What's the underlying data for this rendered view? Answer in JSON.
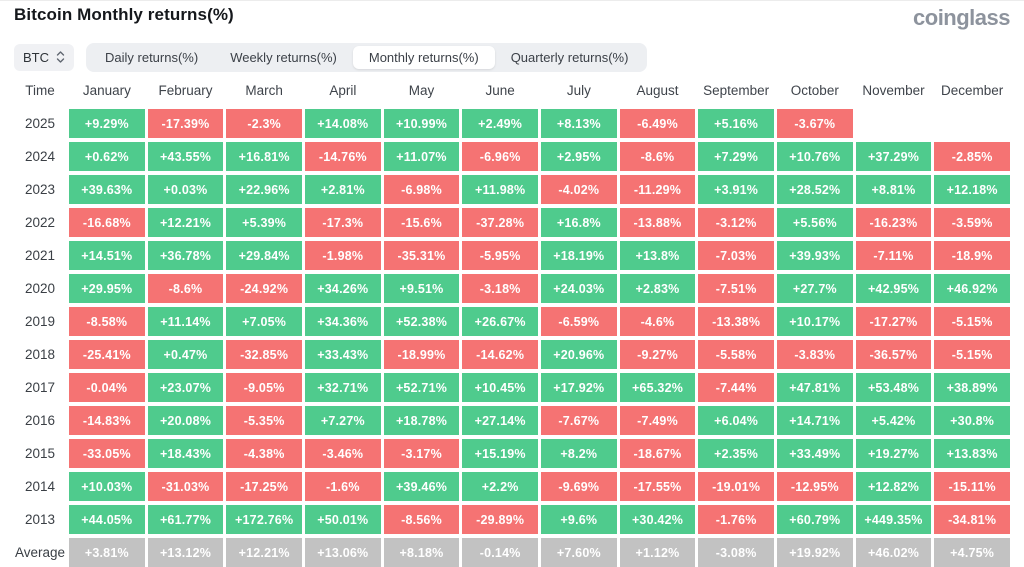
{
  "header": {
    "title": "Bitcoin Monthly returns(%)",
    "logo": "coinglass"
  },
  "toolbar": {
    "coin_selector": {
      "label": "BTC"
    },
    "tabs": [
      {
        "label": "Daily returns(%)",
        "active": false
      },
      {
        "label": "Weekly returns(%)",
        "active": false
      },
      {
        "label": "Monthly returns(%)",
        "active": true
      },
      {
        "label": "Quarterly returns(%)",
        "active": false
      }
    ]
  },
  "chart_data": {
    "type": "heatmap",
    "title": "Bitcoin Monthly returns(%)",
    "colors": {
      "positive": "#4fcb8d",
      "negative": "#f57373",
      "average": "#c2c2c2"
    },
    "columns": [
      "Time",
      "January",
      "February",
      "March",
      "April",
      "May",
      "June",
      "July",
      "August",
      "September",
      "October",
      "November",
      "December"
    ],
    "rows": [
      {
        "label": "2025",
        "average": false,
        "values": [
          "+9.29%",
          "-17.39%",
          "-2.3%",
          "+14.08%",
          "+10.99%",
          "+2.49%",
          "+8.13%",
          "-6.49%",
          "+5.16%",
          "-3.67%",
          "",
          ""
        ]
      },
      {
        "label": "2024",
        "average": false,
        "values": [
          "+0.62%",
          "+43.55%",
          "+16.81%",
          "-14.76%",
          "+11.07%",
          "-6.96%",
          "+2.95%",
          "-8.6%",
          "+7.29%",
          "+10.76%",
          "+37.29%",
          "-2.85%"
        ]
      },
      {
        "label": "2023",
        "average": false,
        "values": [
          "+39.63%",
          "+0.03%",
          "+22.96%",
          "+2.81%",
          "-6.98%",
          "+11.98%",
          "-4.02%",
          "-11.29%",
          "+3.91%",
          "+28.52%",
          "+8.81%",
          "+12.18%"
        ]
      },
      {
        "label": "2022",
        "average": false,
        "values": [
          "-16.68%",
          "+12.21%",
          "+5.39%",
          "-17.3%",
          "-15.6%",
          "-37.28%",
          "+16.8%",
          "-13.88%",
          "-3.12%",
          "+5.56%",
          "-16.23%",
          "-3.59%"
        ]
      },
      {
        "label": "2021",
        "average": false,
        "values": [
          "+14.51%",
          "+36.78%",
          "+29.84%",
          "-1.98%",
          "-35.31%",
          "-5.95%",
          "+18.19%",
          "+13.8%",
          "-7.03%",
          "+39.93%",
          "-7.11%",
          "-18.9%"
        ]
      },
      {
        "label": "2020",
        "average": false,
        "values": [
          "+29.95%",
          "-8.6%",
          "-24.92%",
          "+34.26%",
          "+9.51%",
          "-3.18%",
          "+24.03%",
          "+2.83%",
          "-7.51%",
          "+27.7%",
          "+42.95%",
          "+46.92%"
        ]
      },
      {
        "label": "2019",
        "average": false,
        "values": [
          "-8.58%",
          "+11.14%",
          "+7.05%",
          "+34.36%",
          "+52.38%",
          "+26.67%",
          "-6.59%",
          "-4.6%",
          "-13.38%",
          "+10.17%",
          "-17.27%",
          "-5.15%"
        ]
      },
      {
        "label": "2018",
        "average": false,
        "values": [
          "-25.41%",
          "+0.47%",
          "-32.85%",
          "+33.43%",
          "-18.99%",
          "-14.62%",
          "+20.96%",
          "-9.27%",
          "-5.58%",
          "-3.83%",
          "-36.57%",
          "-5.15%"
        ]
      },
      {
        "label": "2017",
        "average": false,
        "values": [
          "-0.04%",
          "+23.07%",
          "-9.05%",
          "+32.71%",
          "+52.71%",
          "+10.45%",
          "+17.92%",
          "+65.32%",
          "-7.44%",
          "+47.81%",
          "+53.48%",
          "+38.89%"
        ]
      },
      {
        "label": "2016",
        "average": false,
        "values": [
          "-14.83%",
          "+20.08%",
          "-5.35%",
          "+7.27%",
          "+18.78%",
          "+27.14%",
          "-7.67%",
          "-7.49%",
          "+6.04%",
          "+14.71%",
          "+5.42%",
          "+30.8%"
        ]
      },
      {
        "label": "2015",
        "average": false,
        "values": [
          "-33.05%",
          "+18.43%",
          "-4.38%",
          "-3.46%",
          "-3.17%",
          "+15.19%",
          "+8.2%",
          "-18.67%",
          "+2.35%",
          "+33.49%",
          "+19.27%",
          "+13.83%"
        ]
      },
      {
        "label": "2014",
        "average": false,
        "values": [
          "+10.03%",
          "-31.03%",
          "-17.25%",
          "-1.6%",
          "+39.46%",
          "+2.2%",
          "-9.69%",
          "-17.55%",
          "-19.01%",
          "-12.95%",
          "+12.82%",
          "-15.11%"
        ]
      },
      {
        "label": "2013",
        "average": false,
        "values": [
          "+44.05%",
          "+61.77%",
          "+172.76%",
          "+50.01%",
          "-8.56%",
          "-29.89%",
          "+9.6%",
          "+30.42%",
          "-1.76%",
          "+60.79%",
          "+449.35%",
          "-34.81%"
        ]
      },
      {
        "label": "Average",
        "average": true,
        "values": [
          "+3.81%",
          "+13.12%",
          "+12.21%",
          "+13.06%",
          "+8.18%",
          "-0.14%",
          "+7.60%",
          "+1.12%",
          "-3.08%",
          "+19.92%",
          "+46.02%",
          "+4.75%"
        ]
      }
    ]
  }
}
